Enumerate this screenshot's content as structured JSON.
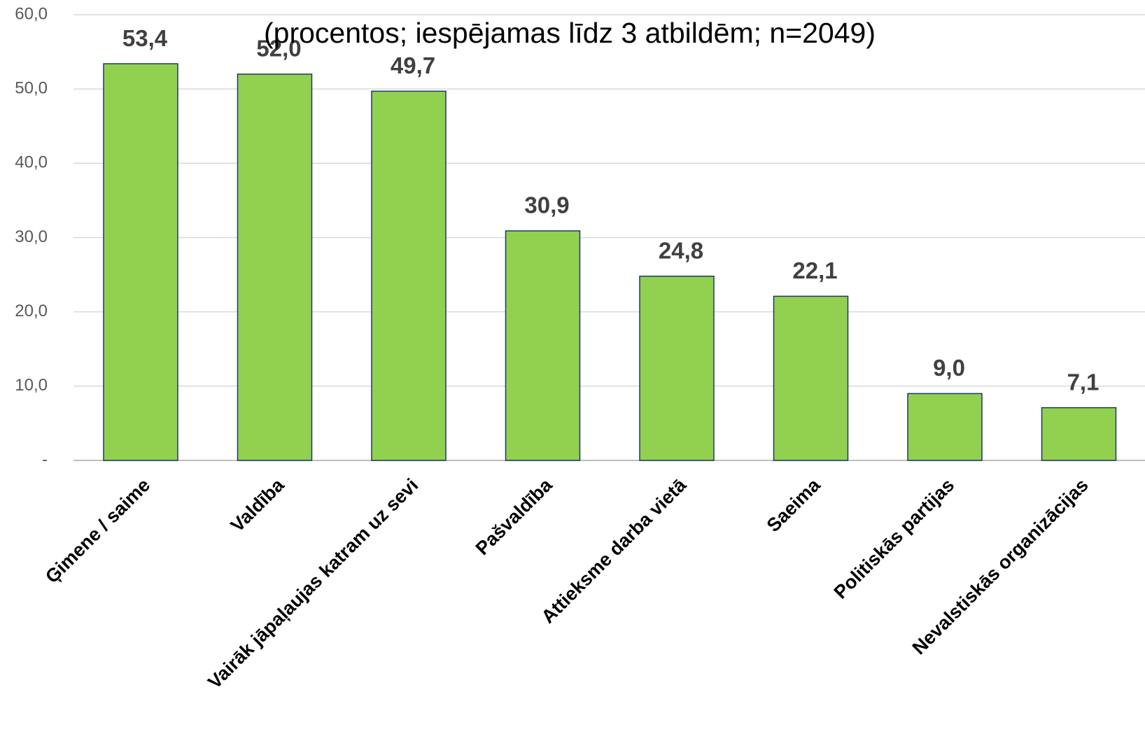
{
  "chart_data": {
    "type": "bar",
    "subtitle": "(procentos; iespējamas līdz 3 atbildēm; n=2049)",
    "categories": [
      "Ģimene / saime",
      "Valdība",
      "Vairāk jāpaļaujas katram uz sevi",
      "Pašvaldība",
      "Attieksme darba vietā",
      "Saeima",
      "Politiskās partijas",
      "Nevalstiskās organizācijas"
    ],
    "values": [
      53.4,
      52.0,
      49.7,
      30.9,
      24.8,
      22.1,
      9.0,
      7.1
    ],
    "value_labels": [
      "53,4",
      "52,0",
      "49,7",
      "30,9",
      "24,8",
      "22,1",
      "9,0",
      "7,1"
    ],
    "color": "#92d050",
    "ylim": [
      0,
      60
    ],
    "yticks": [
      {
        "value": 0,
        "label": "-"
      },
      {
        "value": 10,
        "label": "10,0"
      },
      {
        "value": 20,
        "label": "20,0"
      },
      {
        "value": 30,
        "label": "30,0"
      },
      {
        "value": 40,
        "label": "40,0"
      },
      {
        "value": 50,
        "label": "50,0"
      },
      {
        "value": 60,
        "label": "60,0"
      }
    ],
    "grid": true
  }
}
